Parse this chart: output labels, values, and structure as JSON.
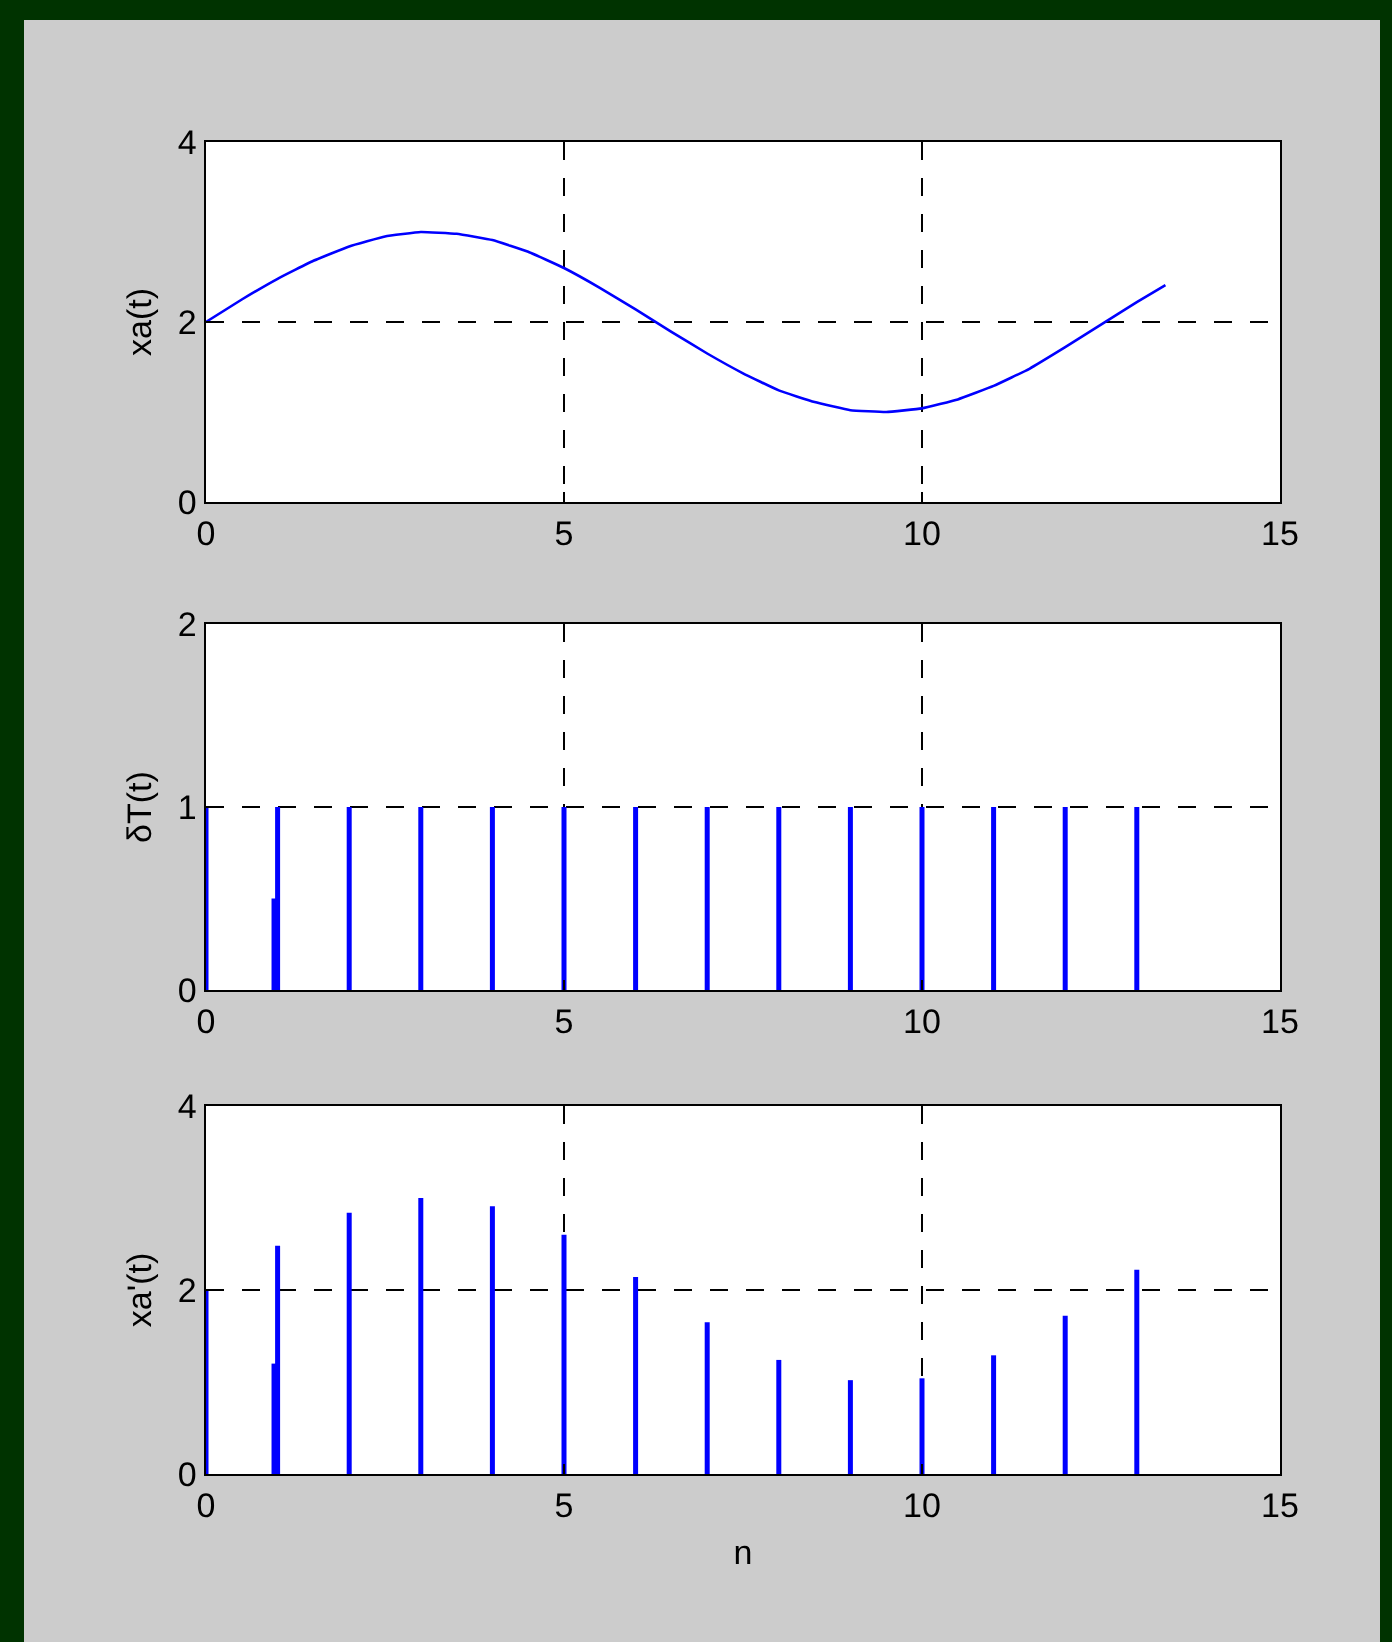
{
  "chart_data": [
    {
      "type": "line",
      "ylabel": "xa(t)",
      "x": [
        0,
        0.5,
        1,
        1.5,
        2,
        2.5,
        3,
        3.5,
        4,
        4.5,
        5,
        5.5,
        6,
        6.5,
        7,
        7.5,
        8,
        8.5,
        9,
        9.5,
        10,
        10.5,
        11,
        11.5,
        12,
        12.5,
        13,
        13.4
      ],
      "series": [
        {
          "color": "#0000ff",
          "values": [
            2.0,
            2.25,
            2.48,
            2.68,
            2.84,
            2.95,
            3.0,
            2.98,
            2.91,
            2.78,
            2.6,
            2.38,
            2.14,
            1.89,
            1.65,
            1.43,
            1.24,
            1.11,
            1.02,
            1.0,
            1.04,
            1.14,
            1.29,
            1.48,
            1.72,
            1.97,
            2.22,
            2.41
          ]
        }
      ],
      "xlim": [
        0,
        15
      ],
      "xticks": [
        0,
        5,
        10,
        15
      ],
      "ylim": [
        0,
        4
      ],
      "yticks": [
        0,
        2,
        4
      ],
      "grid": true
    },
    {
      "type": "bar",
      "ylabel": "δT(t)",
      "x": [
        0,
        0.95,
        1,
        2,
        3,
        4,
        5,
        6,
        7,
        8,
        9,
        10,
        11,
        12,
        13
      ],
      "series": [
        {
          "color": "#0000ff",
          "values": [
            1,
            0.5,
            1,
            1,
            1,
            1,
            1,
            1,
            1,
            1,
            1,
            1,
            1,
            1,
            1
          ]
        }
      ],
      "xlim": [
        0,
        15
      ],
      "xticks": [
        0,
        5,
        10,
        15
      ],
      "ylim": [
        0,
        2
      ],
      "yticks": [
        0,
        1,
        2
      ],
      "grid": true
    },
    {
      "type": "bar",
      "xlabel": "n",
      "ylabel": "xa'(t)",
      "x": [
        0,
        0.95,
        1,
        2,
        3,
        4,
        5,
        6,
        7,
        8,
        9,
        10,
        11,
        12,
        13
      ],
      "series": [
        {
          "color": "#0000ff",
          "values": [
            2.0,
            1.2,
            2.48,
            2.84,
            3.0,
            2.91,
            2.6,
            2.14,
            1.65,
            1.24,
            1.02,
            1.04,
            1.29,
            1.72,
            2.22
          ]
        }
      ],
      "xlim": [
        0,
        15
      ],
      "xticks": [
        0,
        5,
        10,
        15
      ],
      "ylim": [
        0,
        4
      ],
      "yticks": [
        0,
        2,
        4
      ],
      "grid": true
    }
  ]
}
